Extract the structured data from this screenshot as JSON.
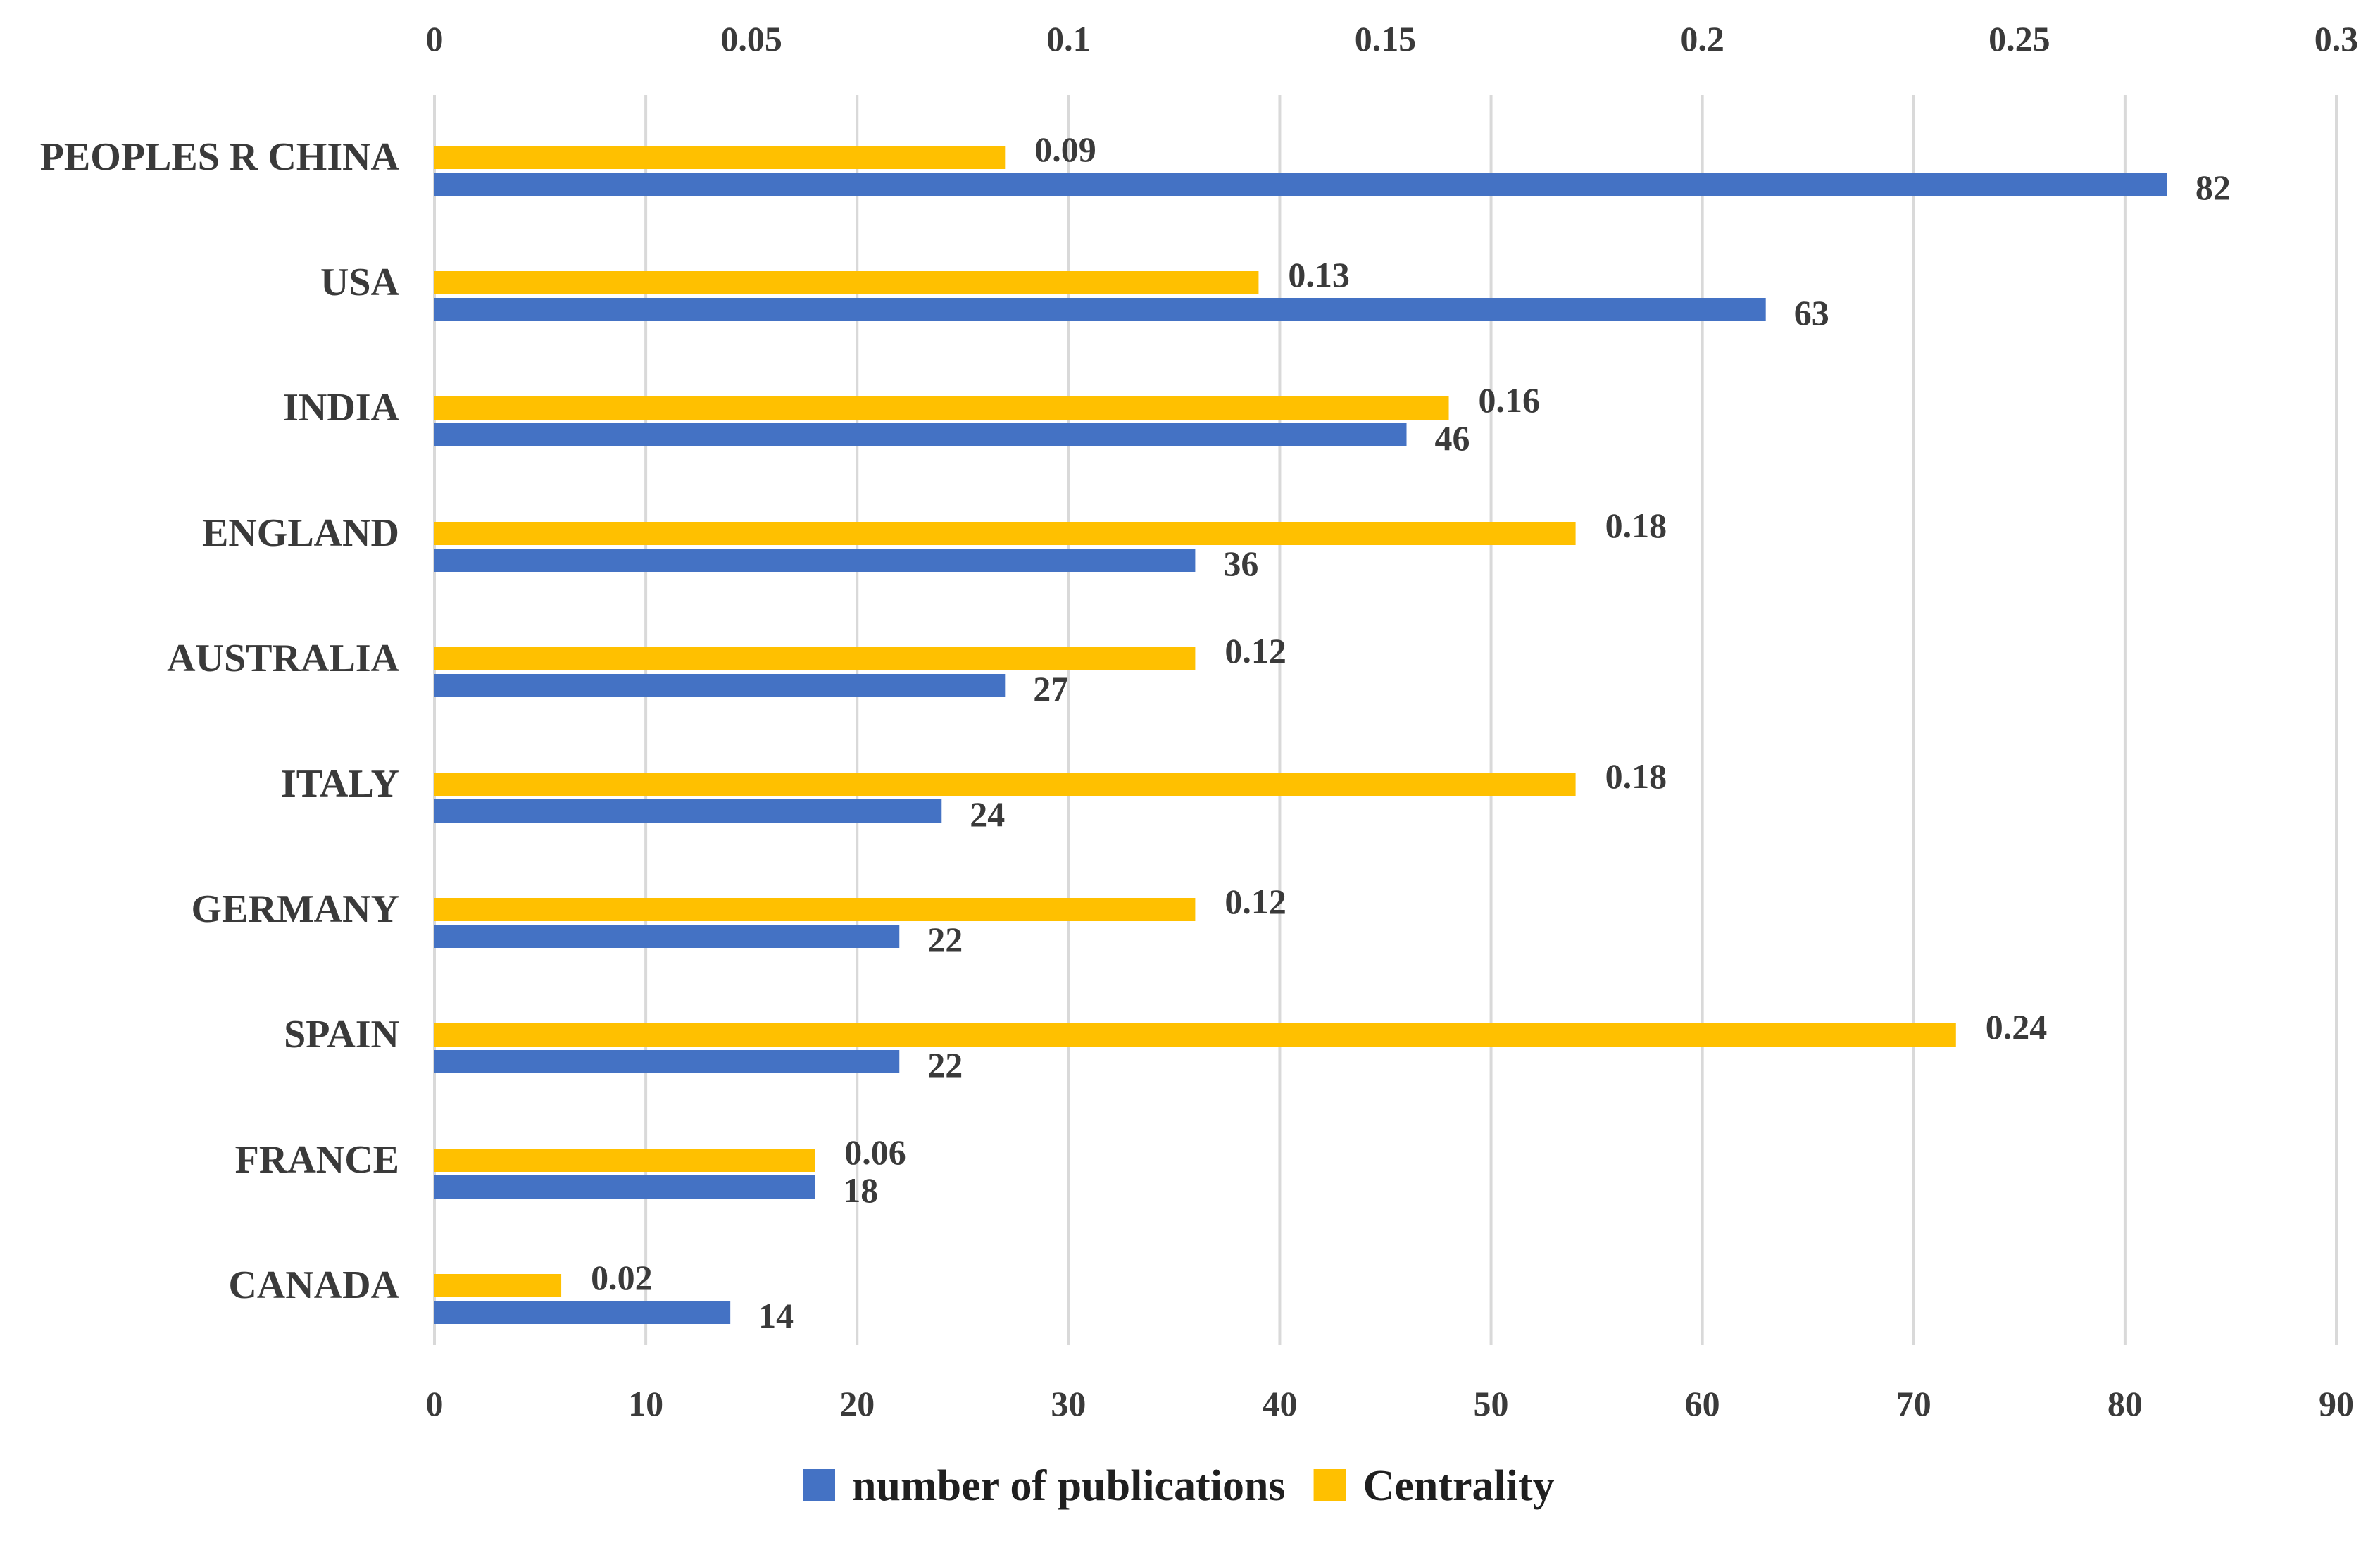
{
  "chart_data": {
    "type": "bar",
    "orientation": "horizontal",
    "categories": [
      "PEOPLES R CHINA",
      "USA",
      "INDIA",
      "ENGLAND",
      "AUSTRALIA",
      "ITALY",
      "GERMANY",
      "SPAIN",
      "FRANCE",
      "CANADA"
    ],
    "series": [
      {
        "name": "Centrality",
        "axis": "top",
        "color": "#FFC000",
        "values": [
          0.09,
          0.13,
          0.16,
          0.18,
          0.12,
          0.18,
          0.12,
          0.24,
          0.06,
          0.02
        ],
        "labels": [
          "0.09",
          "0.13",
          "0.16",
          "0.18",
          "0.12",
          "0.18",
          "0.12",
          "0.24",
          "0.06",
          "0.02"
        ]
      },
      {
        "name": "number of publications",
        "axis": "bottom",
        "color": "#4472C4",
        "values": [
          82,
          63,
          46,
          36,
          27,
          24,
          22,
          22,
          18,
          14
        ],
        "labels": [
          "82",
          "63",
          "46",
          "36",
          "27",
          "24",
          "22",
          "22",
          "18",
          "14"
        ]
      }
    ],
    "top_axis": {
      "min": 0,
      "max": 0.3,
      "ticks": [
        "0",
        "0.05",
        "0.1",
        "0.15",
        "0.2",
        "0.25",
        "0.3"
      ]
    },
    "bottom_axis": {
      "min": 0,
      "max": 90,
      "ticks": [
        "0",
        "10",
        "20",
        "30",
        "40",
        "50",
        "60",
        "70",
        "80",
        "90"
      ]
    },
    "legend": [
      {
        "label": "number of publications",
        "color": "#4472C4"
      },
      {
        "label": "Centrality",
        "color": "#FFC000"
      }
    ],
    "legend_position": "bottom",
    "grid": true
  }
}
